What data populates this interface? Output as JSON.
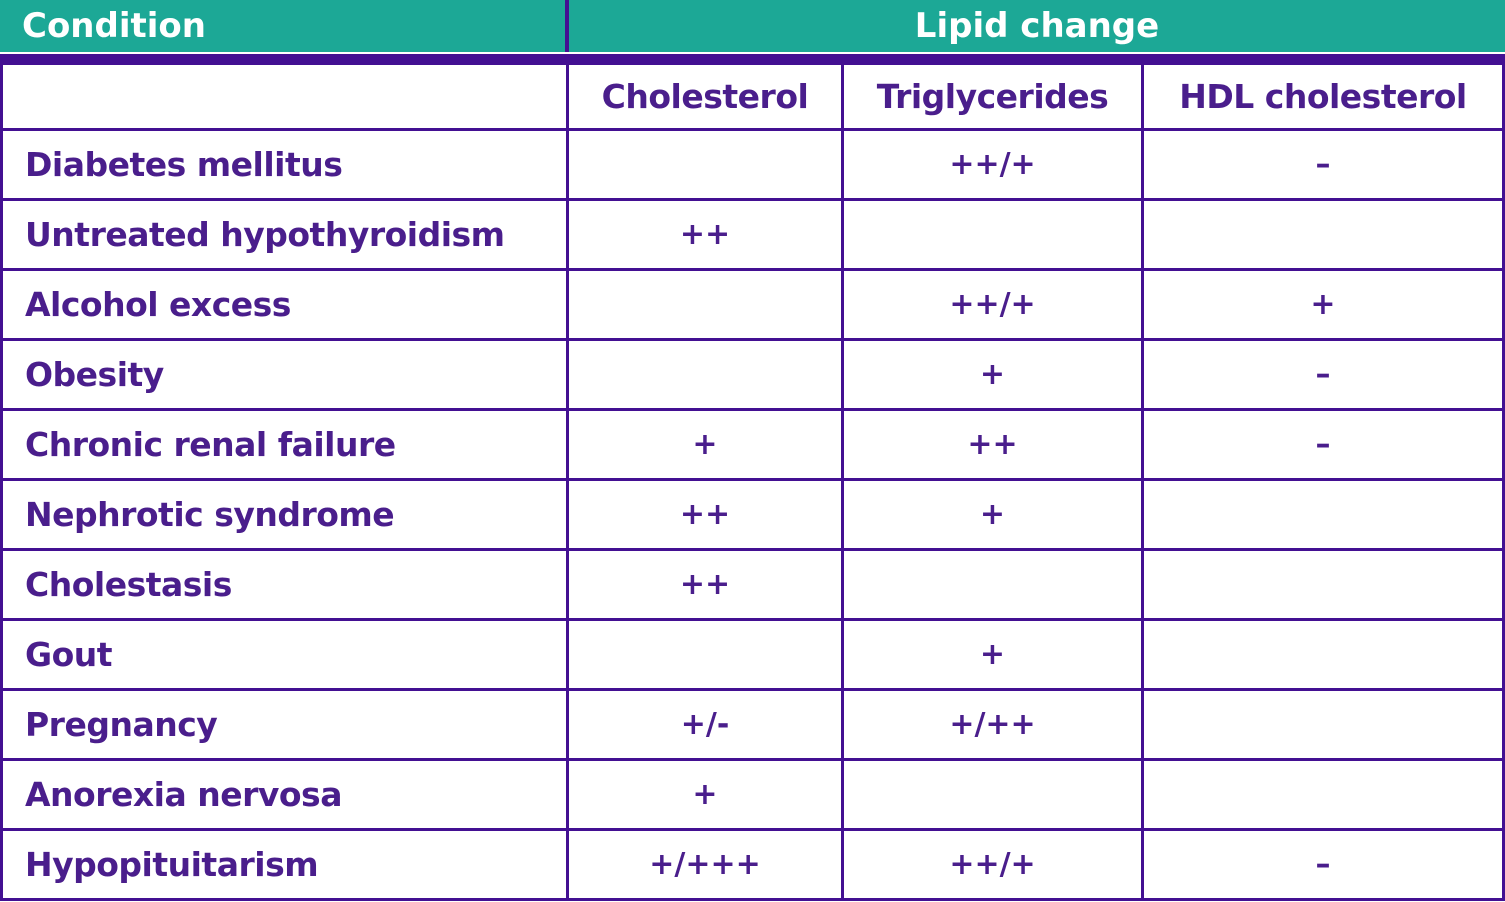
{
  "colors": {
    "teal_header_bg": "#1CA896",
    "purple_border": "#431092",
    "purple_text": "#4A1E8C",
    "header_text": "#FFFFFF"
  },
  "chart_data": {
    "type": "table",
    "header": {
      "condition": "Condition",
      "lipid_change": "Lipid change"
    },
    "subheader": {
      "cholesterol": "Cholesterol",
      "triglycerides": "Triglycerides",
      "hdl": "HDL cholesterol"
    },
    "rows": [
      {
        "condition": "Diabetes mellitus",
        "cholesterol": "",
        "triglycerides": "++/+",
        "hdl": "–"
      },
      {
        "condition": "Untreated hypothyroidism",
        "cholesterol": "++",
        "triglycerides": "",
        "hdl": ""
      },
      {
        "condition": "Alcohol excess",
        "cholesterol": "",
        "triglycerides": "++/+",
        "hdl": "+"
      },
      {
        "condition": "Obesity",
        "cholesterol": "",
        "triglycerides": "+",
        "hdl": "–"
      },
      {
        "condition": "Chronic renal failure",
        "cholesterol": "+",
        "triglycerides": "++",
        "hdl": "–"
      },
      {
        "condition": "Nephrotic syndrome",
        "cholesterol": "++",
        "triglycerides": "+",
        "hdl": ""
      },
      {
        "condition": "Cholestasis",
        "cholesterol": "++",
        "triglycerides": "",
        "hdl": ""
      },
      {
        "condition": "Gout",
        "cholesterol": "",
        "triglycerides": "+",
        "hdl": ""
      },
      {
        "condition": "Pregnancy",
        "cholesterol": "+/-",
        "triglycerides": "+/++",
        "hdl": ""
      },
      {
        "condition": "Anorexia nervosa",
        "cholesterol": "+",
        "triglycerides": "",
        "hdl": ""
      },
      {
        "condition": "Hypopituitarism",
        "cholesterol": "+/+++",
        "triglycerides": "++/+",
        "hdl": "–"
      }
    ]
  }
}
